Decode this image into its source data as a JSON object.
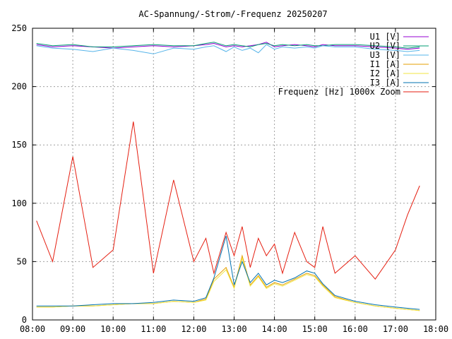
{
  "chart_data": {
    "type": "line",
    "title": "AC-Spannung/-Strom/-Frequenz 20250207",
    "xlabel": "",
    "ylabel": "",
    "x_range": [
      "08:00",
      "18:00"
    ],
    "ylim": [
      0,
      250
    ],
    "x_ticks": [
      "08:00",
      "09:00",
      "10:00",
      "11:00",
      "12:00",
      "13:00",
      "14:00",
      "15:00",
      "16:00",
      "17:00",
      "18:00"
    ],
    "y_ticks": [
      0,
      50,
      100,
      150,
      200,
      250
    ],
    "grid": true,
    "legend_position": "top-right",
    "x_hours": [
      8.1,
      8.5,
      9.0,
      9.5,
      10.0,
      10.5,
      11.0,
      11.5,
      12.0,
      12.3,
      12.5,
      12.8,
      13.0,
      13.2,
      13.4,
      13.6,
      13.8,
      14.0,
      14.2,
      14.5,
      14.8,
      15.0,
      15.2,
      15.5,
      16.0,
      16.5,
      17.0,
      17.3,
      17.6
    ],
    "series": [
      {
        "name": "U1 [V]",
        "color": "#9400d3",
        "values": [
          236,
          234,
          235,
          234,
          233,
          234,
          235,
          234,
          235,
          236,
          237,
          234,
          235,
          234,
          235,
          236,
          238,
          234,
          235,
          236,
          235,
          234,
          236,
          235,
          235,
          234,
          233,
          232,
          233
        ]
      },
      {
        "name": "U2 [V]",
        "color": "#009e73",
        "values": [
          237,
          235,
          236,
          234,
          234,
          235,
          236,
          235,
          235,
          237,
          238,
          235,
          236,
          235,
          234,
          236,
          237,
          235,
          236,
          235,
          236,
          235,
          235,
          236,
          236,
          235,
          234,
          233,
          234
        ]
      },
      {
        "name": "U3 [V]",
        "color": "#56b4e9",
        "values": [
          235,
          233,
          232,
          230,
          233,
          231,
          228,
          233,
          232,
          234,
          235,
          230,
          234,
          231,
          233,
          229,
          236,
          232,
          234,
          233,
          234,
          233,
          235,
          234,
          234,
          232,
          231,
          230,
          231
        ]
      },
      {
        "name": "I1 [A]",
        "color": "#e69f00",
        "values": [
          11,
          11,
          12,
          12,
          13,
          14,
          14,
          16,
          15,
          18,
          35,
          45,
          28,
          55,
          30,
          38,
          28,
          32,
          30,
          35,
          40,
          38,
          30,
          20,
          15,
          12,
          10,
          9,
          8
        ]
      },
      {
        "name": "I2 [A]",
        "color": "#f0e442",
        "values": [
          11,
          11,
          12,
          12,
          13,
          14,
          14,
          16,
          15,
          17,
          33,
          43,
          27,
          53,
          29,
          37,
          27,
          31,
          29,
          34,
          39,
          37,
          29,
          19,
          15,
          12,
          10,
          9,
          8
        ]
      },
      {
        "name": "I3 [A]",
        "color": "#0072b2",
        "values": [
          12,
          12,
          12,
          13,
          14,
          14,
          15,
          17,
          16,
          19,
          36,
          72,
          30,
          50,
          32,
          40,
          30,
          34,
          32,
          36,
          42,
          40,
          31,
          21,
          16,
          13,
          11,
          10,
          9
        ]
      },
      {
        "name": "Frequenz [Hz] 1000x Zoom",
        "color": "#e51e10",
        "values": [
          85,
          50,
          140,
          45,
          60,
          170,
          40,
          120,
          50,
          70,
          40,
          75,
          55,
          80,
          45,
          70,
          55,
          65,
          40,
          75,
          50,
          45,
          80,
          40,
          55,
          35,
          60,
          90,
          115
        ]
      }
    ]
  }
}
